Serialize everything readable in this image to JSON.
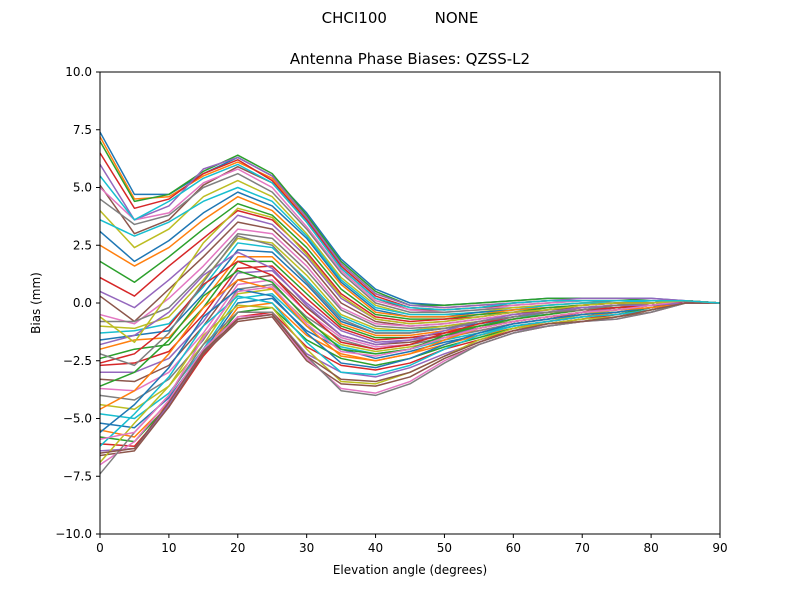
{
  "figure": {
    "suptitle": "CHCI100          NONE"
  },
  "chart_data": {
    "type": "line",
    "title": "Antenna Phase Biases: QZSS-L2",
    "xlabel": "Elevation angle (degrees)",
    "ylabel": "Bias (mm)",
    "xlim": [
      0,
      90
    ],
    "ylim": [
      -10,
      10
    ],
    "xticks": [
      "0",
      "10",
      "20",
      "30",
      "40",
      "50",
      "60",
      "70",
      "80",
      "90"
    ],
    "yticks": [
      "−10.0",
      "−7.5",
      "−5.0",
      "−2.5",
      "0.0",
      "2.5",
      "5.0",
      "7.5",
      "10.0"
    ],
    "grid": false,
    "legend": "none",
    "colors": [
      "#1f77b4",
      "#ff7f0e",
      "#2ca02c",
      "#d62728",
      "#9467bd",
      "#8c564b",
      "#e377c2",
      "#7f7f7f",
      "#bcbd22",
      "#17becf"
    ],
    "x": [
      0,
      5,
      10,
      15,
      20,
      25,
      30,
      35,
      40,
      45,
      50,
      55,
      60,
      65,
      70,
      75,
      80,
      85,
      90
    ],
    "series": [
      {
        "values": [
          7.4,
          4.7,
          4.7,
          5.6,
          6.3,
          5.5,
          3.9,
          1.9,
          0.6,
          0.0,
          -0.1,
          0.0,
          0.1,
          0.2,
          0.2,
          0.2,
          0.2,
          0.1,
          0.0
        ]
      },
      {
        "values": [
          7.2,
          4.5,
          4.6,
          5.5,
          6.1,
          5.4,
          3.7,
          1.7,
          0.4,
          -0.1,
          -0.2,
          -0.1,
          0.0,
          0.1,
          0.1,
          0.1,
          0.1,
          0.1,
          0.0
        ]
      },
      {
        "values": [
          7.0,
          4.4,
          4.7,
          5.7,
          6.4,
          5.6,
          3.8,
          1.8,
          0.5,
          -0.1,
          -0.1,
          0.0,
          0.1,
          0.2,
          0.2,
          0.2,
          0.1,
          0.1,
          0.0
        ]
      },
      {
        "values": [
          6.5,
          4.1,
          4.5,
          5.6,
          6.2,
          5.3,
          3.6,
          1.6,
          0.3,
          -0.2,
          -0.3,
          -0.2,
          0.0,
          0.1,
          0.1,
          0.1,
          0.1,
          0.1,
          0.0
        ]
      },
      {
        "values": [
          6.0,
          3.6,
          4.2,
          5.8,
          6.3,
          5.5,
          3.7,
          1.7,
          0.4,
          -0.1,
          -0.2,
          -0.1,
          0.0,
          0.1,
          0.2,
          0.2,
          0.2,
          0.1,
          0.0
        ]
      },
      {
        "values": [
          5.1,
          3.0,
          3.6,
          5.1,
          5.9,
          5.2,
          3.5,
          1.5,
          0.2,
          -0.3,
          -0.3,
          -0.2,
          -0.1,
          0.0,
          0.1,
          0.1,
          0.1,
          0.1,
          0.0
        ]
      },
      {
        "values": [
          5.0,
          3.6,
          3.9,
          5.2,
          5.8,
          5.0,
          3.3,
          1.4,
          0.1,
          -0.3,
          -0.4,
          -0.3,
          -0.1,
          0.0,
          0.1,
          0.1,
          0.1,
          0.1,
          0.0
        ]
      },
      {
        "values": [
          4.5,
          3.4,
          3.8,
          5.0,
          5.6,
          4.8,
          3.2,
          1.3,
          0.0,
          -0.4,
          -0.4,
          -0.3,
          -0.2,
          -0.1,
          0.0,
          0.1,
          0.1,
          0.1,
          0.0
        ]
      },
      {
        "values": [
          4.0,
          2.4,
          3.2,
          4.6,
          5.3,
          4.6,
          3.0,
          1.1,
          -0.1,
          -0.5,
          -0.5,
          -0.4,
          -0.2,
          -0.1,
          0.0,
          0.0,
          0.1,
          0.1,
          0.0
        ]
      },
      {
        "values": [
          3.6,
          2.9,
          3.5,
          4.4,
          5.0,
          4.4,
          2.9,
          1.0,
          -0.2,
          -0.5,
          -0.5,
          -0.4,
          -0.3,
          -0.1,
          0.0,
          0.0,
          0.1,
          0.1,
          0.0
        ]
      },
      {
        "values": [
          3.1,
          1.8,
          2.7,
          3.9,
          4.8,
          4.2,
          2.8,
          0.9,
          -0.3,
          -0.6,
          -0.6,
          -0.4,
          -0.3,
          -0.2,
          -0.1,
          0.0,
          0.0,
          0.1,
          0.0
        ]
      },
      {
        "values": [
          2.5,
          1.6,
          2.4,
          3.6,
          4.6,
          4.0,
          2.6,
          0.8,
          -0.4,
          -0.6,
          -0.6,
          -0.5,
          -0.3,
          -0.2,
          -0.1,
          0.0,
          0.0,
          0.1,
          0.0
        ]
      },
      {
        "values": [
          1.8,
          0.9,
          2.0,
          3.2,
          4.3,
          3.8,
          2.4,
          0.6,
          -0.5,
          -0.7,
          -0.7,
          -0.5,
          -0.4,
          -0.2,
          -0.1,
          0.0,
          0.0,
          0.1,
          0.0
        ]
      },
      {
        "values": [
          1.1,
          0.3,
          1.6,
          2.8,
          4.0,
          3.6,
          2.2,
          0.4,
          -0.6,
          -0.8,
          -0.7,
          -0.6,
          -0.4,
          -0.3,
          -0.1,
          0.0,
          0.0,
          0.1,
          0.0
        ]
      },
      {
        "values": [
          0.5,
          -0.2,
          1.0,
          2.3,
          3.8,
          3.4,
          2.0,
          0.2,
          -0.7,
          -0.9,
          -0.8,
          -0.6,
          -0.4,
          -0.3,
          -0.2,
          -0.1,
          0.0,
          0.1,
          0.0
        ]
      },
      {
        "values": [
          0.3,
          -0.8,
          0.6,
          2.0,
          3.5,
          3.2,
          1.8,
          0.0,
          -0.8,
          -1.0,
          -0.9,
          -0.7,
          -0.5,
          -0.3,
          -0.2,
          -0.1,
          0.0,
          0.1,
          0.0
        ]
      },
      {
        "values": [
          -0.5,
          -0.9,
          0.2,
          1.6,
          3.2,
          3.0,
          1.6,
          -0.2,
          -0.9,
          -1.0,
          -0.9,
          -0.7,
          -0.5,
          -0.4,
          -0.2,
          -0.1,
          0.0,
          0.1,
          0.0
        ]
      },
      {
        "values": [
          -0.8,
          -0.8,
          -0.2,
          1.3,
          3.0,
          2.8,
          1.4,
          -0.3,
          -1.0,
          -1.1,
          -1.0,
          -0.8,
          -0.6,
          -0.4,
          -0.2,
          -0.1,
          0.0,
          0.1,
          0.0
        ]
      },
      {
        "values": [
          -1.0,
          -1.1,
          -0.6,
          1.0,
          2.8,
          2.6,
          1.2,
          -0.5,
          -1.1,
          -1.2,
          -1.0,
          -0.8,
          -0.6,
          -0.4,
          -0.3,
          -0.1,
          0.0,
          0.1,
          0.0
        ]
      },
      {
        "values": [
          -1.3,
          -1.2,
          -0.9,
          0.7,
          2.6,
          2.4,
          1.0,
          -0.6,
          -1.2,
          -1.2,
          -1.1,
          -0.9,
          -0.6,
          -0.5,
          -0.3,
          -0.1,
          0.0,
          0.1,
          0.0
        ]
      },
      {
        "values": [
          -1.6,
          -1.4,
          -1.2,
          0.4,
          2.3,
          2.2,
          0.8,
          -0.8,
          -1.3,
          -1.3,
          -1.1,
          -0.9,
          -0.7,
          -0.5,
          -0.3,
          -0.2,
          0.0,
          0.1,
          0.0
        ]
      },
      {
        "values": [
          -2.0,
          -1.6,
          -1.5,
          0.1,
          2.0,
          2.0,
          0.6,
          -0.9,
          -1.4,
          -1.4,
          -1.2,
          -1.0,
          -0.7,
          -0.5,
          -0.3,
          -0.2,
          0.0,
          0.1,
          0.0
        ]
      },
      {
        "values": [
          -2.4,
          -2.0,
          -1.8,
          -0.2,
          1.8,
          1.8,
          0.4,
          -1.0,
          -1.5,
          -1.5,
          -1.3,
          -1.0,
          -0.8,
          -0.6,
          -0.4,
          -0.2,
          -0.1,
          0.1,
          0.0
        ]
      },
      {
        "values": [
          -2.7,
          -2.6,
          -2.1,
          -0.5,
          1.5,
          1.6,
          0.2,
          -1.1,
          -1.6,
          -1.5,
          -1.3,
          -1.1,
          -0.8,
          -0.6,
          -0.4,
          -0.2,
          -0.1,
          0.1,
          0.0
        ]
      },
      {
        "values": [
          -3.0,
          -3.0,
          -2.4,
          -0.8,
          1.3,
          1.4,
          0.0,
          -1.2,
          -1.7,
          -1.6,
          -1.4,
          -1.1,
          -0.8,
          -0.6,
          -0.4,
          -0.2,
          -0.1,
          0.1,
          0.0
        ]
      },
      {
        "values": [
          -3.3,
          -3.4,
          -2.7,
          -1.0,
          1.0,
          1.2,
          -0.2,
          -1.4,
          -1.8,
          -1.7,
          -1.4,
          -1.2,
          -0.9,
          -0.7,
          -0.4,
          -0.3,
          -0.1,
          0.1,
          0.0
        ]
      },
      {
        "values": [
          -3.7,
          -3.8,
          -3.0,
          -1.3,
          0.8,
          1.0,
          -0.4,
          -1.5,
          -1.9,
          -1.8,
          -1.5,
          -1.2,
          -0.9,
          -0.7,
          -0.5,
          -0.3,
          -0.1,
          0.1,
          0.0
        ]
      },
      {
        "values": [
          -4.0,
          -4.2,
          -3.3,
          -1.6,
          0.6,
          0.8,
          -0.6,
          -1.6,
          -2.0,
          -1.8,
          -1.5,
          -1.2,
          -0.9,
          -0.7,
          -0.5,
          -0.3,
          -0.1,
          0.1,
          0.0
        ]
      },
      {
        "values": [
          -4.4,
          -4.6,
          -3.6,
          -1.8,
          0.4,
          0.6,
          -0.8,
          -1.8,
          -2.1,
          -1.9,
          -1.6,
          -1.3,
          -1.0,
          -0.8,
          -0.5,
          -0.3,
          -0.1,
          0.1,
          0.0
        ]
      },
      {
        "values": [
          -4.8,
          -5.0,
          -3.9,
          -2.0,
          0.2,
          0.4,
          -1.0,
          -1.9,
          -2.2,
          -2.0,
          -1.6,
          -1.3,
          -1.0,
          -0.8,
          -0.6,
          -0.4,
          -0.2,
          0.1,
          0.0
        ]
      },
      {
        "values": [
          -5.2,
          -5.4,
          -4.1,
          -2.1,
          0.0,
          0.2,
          -1.2,
          -2.0,
          -2.4,
          -2.1,
          -1.7,
          -1.4,
          -1.0,
          -0.8,
          -0.6,
          -0.4,
          -0.2,
          0.1,
          0.0
        ]
      },
      {
        "values": [
          -5.5,
          -5.8,
          -4.3,
          -2.2,
          -0.2,
          0.0,
          -1.4,
          -2.2,
          -2.5,
          -2.2,
          -1.8,
          -1.4,
          -1.1,
          -0.8,
          -0.6,
          -0.4,
          -0.2,
          0.1,
          0.0
        ]
      },
      {
        "values": [
          -5.8,
          -6.0,
          -4.4,
          -2.2,
          -0.4,
          -0.2,
          -1.6,
          -2.4,
          -2.7,
          -2.4,
          -1.9,
          -1.5,
          -1.1,
          -0.9,
          -0.7,
          -0.5,
          -0.2,
          0.1,
          0.0
        ]
      },
      {
        "values": [
          -6.1,
          -6.2,
          -4.5,
          -2.3,
          -0.6,
          -0.4,
          -1.9,
          -2.7,
          -2.9,
          -2.6,
          -2.0,
          -1.6,
          -1.2,
          -0.9,
          -0.7,
          -0.5,
          -0.3,
          0.1,
          0.0
        ]
      },
      {
        "values": [
          -6.4,
          -6.3,
          -4.4,
          -2.2,
          -0.7,
          -0.5,
          -2.2,
          -3.0,
          -3.2,
          -2.8,
          -2.2,
          -1.7,
          -1.2,
          -1.0,
          -0.8,
          -0.6,
          -0.3,
          0.0,
          0.0
        ]
      },
      {
        "values": [
          -6.6,
          -6.4,
          -4.5,
          -2.2,
          -0.8,
          -0.6,
          -2.5,
          -3.5,
          -3.6,
          -3.2,
          -2.4,
          -1.8,
          -1.3,
          -1.0,
          -0.8,
          -0.6,
          -0.4,
          0.0,
          0.0
        ]
      },
      {
        "values": [
          -7.0,
          -6.0,
          -4.2,
          -2.0,
          -0.6,
          -0.5,
          -2.4,
          -3.7,
          -3.9,
          -3.4,
          -2.5,
          -1.8,
          -1.3,
          -1.0,
          -0.8,
          -0.7,
          -0.4,
          0.0,
          0.0
        ]
      },
      {
        "values": [
          -7.4,
          -5.6,
          -4.0,
          -1.8,
          -0.4,
          -0.4,
          -2.3,
          -3.8,
          -4.0,
          -3.5,
          -2.6,
          -1.8,
          -1.3,
          -1.0,
          -0.8,
          -0.7,
          -0.4,
          0.0,
          0.0
        ]
      },
      {
        "values": [
          -6.9,
          -5.2,
          -3.6,
          -1.4,
          -0.1,
          -0.2,
          -2.0,
          -3.4,
          -3.5,
          -3.0,
          -2.3,
          -1.6,
          -1.1,
          -0.9,
          -0.7,
          -0.6,
          -0.3,
          0.0,
          0.0
        ]
      },
      {
        "values": [
          -6.2,
          -4.8,
          -3.2,
          -1.0,
          0.3,
          0.0,
          -1.7,
          -3.0,
          -3.1,
          -2.7,
          -2.0,
          -1.4,
          -1.0,
          -0.8,
          -0.6,
          -0.5,
          -0.3,
          0.0,
          0.0
        ]
      },
      {
        "values": [
          -5.6,
          -4.4,
          -2.8,
          -0.6,
          0.6,
          0.3,
          -1.3,
          -2.6,
          -2.8,
          -2.4,
          -1.8,
          -1.3,
          -0.9,
          -0.7,
          -0.5,
          -0.4,
          -0.2,
          0.0,
          0.0
        ]
      },
      {
        "values": [
          -4.6,
          -3.8,
          -2.2,
          -0.2,
          1.0,
          0.6,
          -1.0,
          -2.3,
          -2.5,
          -2.2,
          -1.6,
          -1.1,
          -0.8,
          -0.6,
          -0.4,
          -0.3,
          -0.2,
          0.0,
          0.0
        ]
      },
      {
        "values": [
          -3.6,
          -3.0,
          -1.6,
          0.3,
          1.4,
          0.9,
          -0.7,
          -2.0,
          -2.2,
          -2.0,
          -1.4,
          -1.0,
          -0.7,
          -0.5,
          -0.3,
          -0.2,
          -0.1,
          0.0,
          0.0
        ]
      },
      {
        "values": [
          -2.6,
          -2.2,
          -1.0,
          0.8,
          1.8,
          1.2,
          -0.4,
          -1.7,
          -2.0,
          -1.8,
          -1.3,
          -0.9,
          -0.6,
          -0.4,
          -0.3,
          -0.2,
          -0.1,
          0.0,
          0.0
        ]
      },
      {
        "values": [
          -1.8,
          -1.4,
          -0.4,
          1.2,
          2.2,
          1.5,
          -0.1,
          -1.4,
          -1.8,
          -1.6,
          -1.2,
          -0.8,
          -0.5,
          -0.4,
          -0.2,
          -0.1,
          -0.1,
          0.0,
          0.0
        ]
      },
      {
        "values": [
          -6.5,
          -6.3,
          -4.3,
          -2.1,
          -0.7,
          -0.5,
          -2.3,
          -3.3,
          -3.4,
          -3.0,
          -2.3,
          -1.7,
          -1.2,
          -0.9,
          -0.8,
          -0.6,
          -0.3,
          0.0,
          0.0
        ]
      },
      {
        "values": [
          -5.9,
          -5.6,
          -4.0,
          -1.5,
          0.5,
          0.7,
          -0.9,
          -2.1,
          -2.3,
          -2.0,
          -1.5,
          -1.1,
          -0.8,
          -0.6,
          -0.4,
          -0.3,
          -0.1,
          0.1,
          0.0
        ]
      },
      {
        "values": [
          -2.2,
          -2.7,
          -1.3,
          0.9,
          2.9,
          2.5,
          0.9,
          -0.7,
          -1.3,
          -1.3,
          -1.1,
          -0.8,
          -0.6,
          -0.4,
          -0.3,
          -0.1,
          0.0,
          0.1,
          0.0
        ]
      },
      {
        "values": [
          -0.6,
          -1.7,
          0.4,
          2.6,
          4.1,
          3.7,
          2.1,
          0.3,
          -0.7,
          -0.9,
          -0.8,
          -0.6,
          -0.4,
          -0.3,
          -0.1,
          0.0,
          0.0,
          0.1,
          0.0
        ]
      },
      {
        "values": [
          5.5,
          3.6,
          4.4,
          5.4,
          6.0,
          5.2,
          3.5,
          1.5,
          0.2,
          -0.2,
          -0.3,
          -0.2,
          0.0,
          0.1,
          0.1,
          0.1,
          0.1,
          0.1,
          0.0
        ]
      }
    ]
  }
}
